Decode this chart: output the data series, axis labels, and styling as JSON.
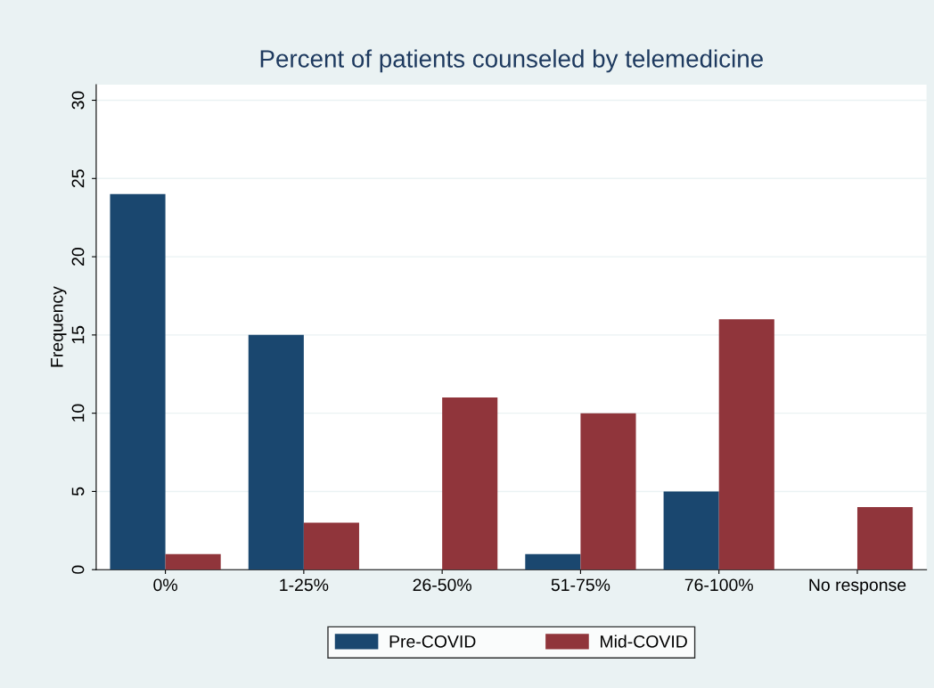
{
  "chart_data": {
    "type": "bar",
    "title": "Percent of patients counseled by telemedicine",
    "ylabel": "Frequency",
    "categories": [
      "0%",
      "1-25%",
      "26-50%",
      "51-75%",
      "76-100%",
      "No response"
    ],
    "series": [
      {
        "name": "Pre-COVID",
        "color": "#1a476f",
        "values": [
          24,
          15,
          0,
          1,
          5,
          0
        ]
      },
      {
        "name": "Mid-COVID",
        "color": "#90353b",
        "values": [
          1,
          3,
          11,
          10,
          16,
          4
        ]
      }
    ],
    "ylim": [
      0,
      31
    ],
    "yticks": [
      0,
      5,
      10,
      15,
      20,
      25,
      30
    ],
    "grid": "y",
    "legend": "bottom"
  }
}
